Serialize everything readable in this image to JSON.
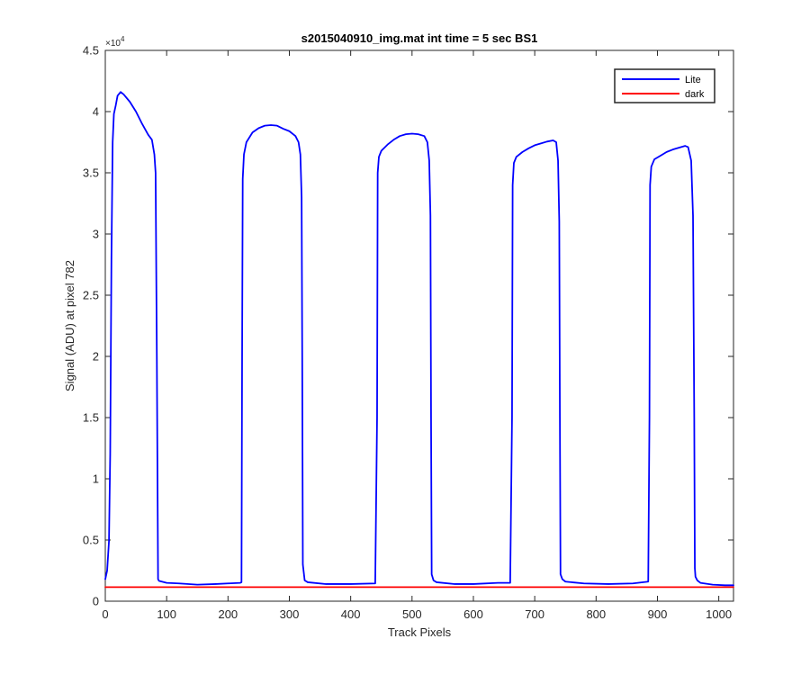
{
  "chart_data": {
    "type": "line",
    "title": "s2015040910_img.mat int time = 5 sec   BS1",
    "xlabel": "Track Pixels",
    "ylabel": "Signal (ADU) at pixel 782",
    "y_exponent_label": "×10",
    "y_exponent_power": "4",
    "xlim": [
      0,
      1024
    ],
    "ylim": [
      0,
      45000
    ],
    "xticks": [
      0,
      100,
      200,
      300,
      400,
      500,
      600,
      700,
      800,
      900,
      1000
    ],
    "xtick_labels": [
      "0",
      "100",
      "200",
      "300",
      "400",
      "500",
      "600",
      "700",
      "800",
      "900",
      "1000"
    ],
    "yticks": [
      0,
      5000,
      10000,
      15000,
      20000,
      25000,
      30000,
      35000,
      40000,
      45000
    ],
    "ytick_labels": [
      "0",
      "0.5",
      "1",
      "1.5",
      "2",
      "2.5",
      "3",
      "3.5",
      "4",
      "4.5"
    ],
    "grid": false,
    "legend_position": "top-right",
    "series": [
      {
        "name": "Lite",
        "color": "#0000ff",
        "x": [
          0,
          3,
          6,
          8,
          10,
          12,
          14,
          17,
          20,
          25,
          30,
          40,
          50,
          60,
          70,
          76,
          80,
          82,
          84,
          86,
          87,
          88,
          100,
          120,
          150,
          180,
          200,
          220,
          222,
          223,
          224,
          226,
          230,
          240,
          250,
          260,
          270,
          280,
          290,
          300,
          310,
          315,
          318,
          320,
          321,
          322,
          325,
          330,
          360,
          400,
          440,
          443,
          444,
          446,
          450,
          460,
          470,
          480,
          490,
          500,
          510,
          520,
          525,
          528,
          530,
          531,
          532,
          535,
          540,
          570,
          600,
          640,
          660,
          663,
          664,
          666,
          670,
          680,
          690,
          700,
          710,
          720,
          730,
          735,
          738,
          740,
          741,
          742,
          745,
          750,
          780,
          820,
          860,
          885,
          887,
          888,
          890,
          895,
          905,
          915,
          925,
          935,
          945,
          950,
          955,
          958,
          960,
          961,
          962,
          965,
          970,
          990,
          1010,
          1024
        ],
        "y": [
          1800,
          2500,
          4900,
          12000,
          28000,
          37500,
          39800,
          40500,
          41300,
          41600,
          41400,
          40800,
          40000,
          39000,
          38100,
          37700,
          36500,
          35000,
          20000,
          1800,
          1700,
          1650,
          1500,
          1450,
          1350,
          1400,
          1450,
          1500,
          1550,
          20000,
          34500,
          36500,
          37500,
          38300,
          38650,
          38850,
          38900,
          38850,
          38600,
          38400,
          38000,
          37500,
          36500,
          33000,
          20000,
          3000,
          1700,
          1550,
          1400,
          1400,
          1450,
          15000,
          35000,
          36300,
          36800,
          37300,
          37700,
          38000,
          38150,
          38200,
          38150,
          38000,
          37500,
          36000,
          31500,
          15000,
          2200,
          1700,
          1550,
          1400,
          1400,
          1500,
          1500,
          15000,
          34000,
          35800,
          36300,
          36700,
          37000,
          37250,
          37400,
          37550,
          37650,
          37500,
          36000,
          31000,
          15000,
          2200,
          1800,
          1600,
          1450,
          1400,
          1450,
          1600,
          15000,
          34000,
          35500,
          36100,
          36400,
          36700,
          36900,
          37050,
          37200,
          37100,
          36000,
          31500,
          15000,
          2700,
          2000,
          1700,
          1500,
          1350,
          1300,
          1300
        ]
      },
      {
        "name": "dark",
        "color": "#ff0000",
        "x": [
          0,
          1024
        ],
        "y": [
          1150,
          1150
        ]
      }
    ]
  }
}
